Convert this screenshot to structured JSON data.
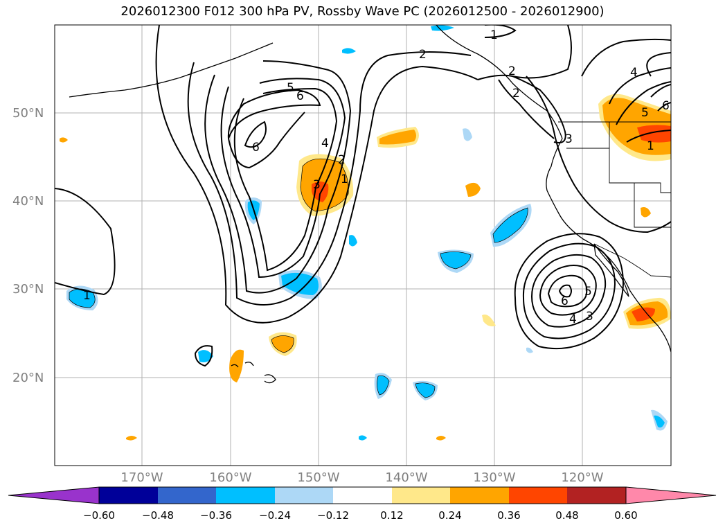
{
  "title": "2026012300 F012 300 hPa PV, Rossby Wave PC (2026012500 - 2026012900)",
  "map": {
    "projection": "cylindrical",
    "lon_range_deg": [
      -180,
      -110
    ],
    "lat_range_deg": [
      10,
      60
    ],
    "background": "#ffffff",
    "coastline_color": "#000000",
    "gridlines": true,
    "lat_labels": [
      "50°N",
      "40°N",
      "30°N",
      "20°N"
    ],
    "lon_labels": [
      "170°W",
      "160°W",
      "150°W",
      "140°W",
      "130°W",
      "120°W"
    ],
    "contour_labels": [
      "1",
      "2",
      "2",
      "4",
      "5",
      "6",
      "6",
      "1",
      "2",
      "3",
      "4",
      "5",
      "6",
      "1",
      "2",
      "3",
      "4",
      "5",
      "6",
      "1",
      "3",
      "4",
      "5",
      "6",
      "1"
    ]
  },
  "colorbar": {
    "orientation": "horizontal",
    "extend": "both",
    "ticks": [
      "−0.60",
      "−0.48",
      "−0.36",
      "−0.24",
      "−0.12",
      "0.12",
      "0.24",
      "0.36",
      "0.48",
      "0.60"
    ],
    "colors": [
      "#9933cc",
      "#000099",
      "#3366cc",
      "#00bfff",
      "#add8f6",
      "#ffffff",
      "#ffe88a",
      "#ffa500",
      "#ff4500",
      "#b22222",
      "#ff88aa"
    ]
  }
}
